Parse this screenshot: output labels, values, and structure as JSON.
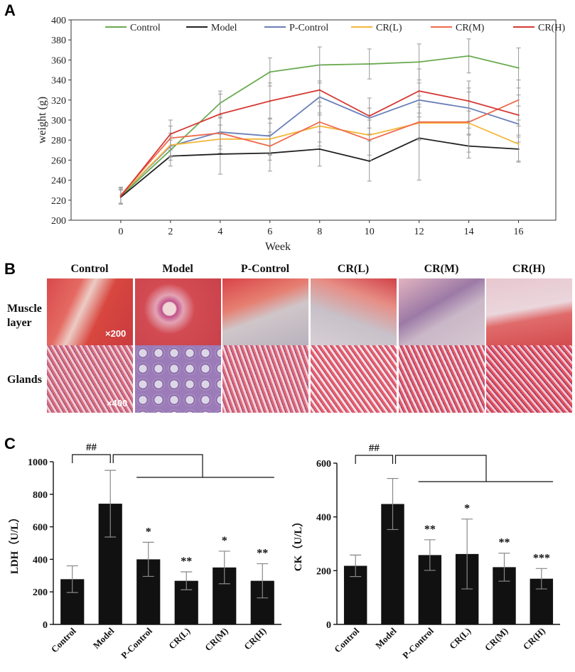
{
  "panels": {
    "a": "A",
    "b": "B",
    "c": "C"
  },
  "chart_data": [
    {
      "type": "line",
      "title": "",
      "xlabel": "Week",
      "ylabel": "weight (g)",
      "x": [
        0,
        2,
        4,
        6,
        8,
        10,
        12,
        14,
        16
      ],
      "xticks": [
        "0",
        "2",
        "4",
        "6",
        "8",
        "10",
        "12",
        "14",
        "16"
      ],
      "yticks": [
        "200",
        "220",
        "240",
        "260",
        "280",
        "300",
        "320",
        "340",
        "360",
        "380",
        "400"
      ],
      "ylim": [
        200,
        400
      ],
      "xlim": [
        -2,
        17.5
      ],
      "legend_position": "top",
      "series": [
        {
          "name": "Control",
          "color": "#6aaa4f",
          "values": [
            224,
            270,
            317,
            348,
            355,
            356,
            358,
            364,
            352
          ],
          "err": [
            8,
            10,
            12,
            14,
            18,
            15,
            18,
            17,
            20
          ]
        },
        {
          "name": "Model",
          "color": "#222222",
          "values": [
            223,
            264,
            266,
            267,
            271,
            259,
            282,
            274,
            271
          ],
          "err": [
            7,
            10,
            20,
            18,
            17,
            20,
            42,
            12,
            12
          ]
        },
        {
          "name": "P-Control",
          "color": "#6a7fb8",
          "values": [
            225,
            274,
            288,
            284,
            323,
            302,
            320,
            312,
            296
          ],
          "err": [
            8,
            10,
            14,
            18,
            16,
            10,
            17,
            20,
            18
          ]
        },
        {
          "name": "CR(L)",
          "color": "#f4b73a",
          "values": [
            225,
            275,
            281,
            281,
            294,
            285,
            297,
            297,
            276
          ],
          "err": [
            8,
            12,
            14,
            16,
            20,
            20,
            16,
            12,
            18
          ]
        },
        {
          "name": "CR(M)",
          "color": "#ef6a4c",
          "values": [
            225,
            282,
            287,
            274,
            298,
            280,
            298,
            298,
            320
          ],
          "err": [
            8,
            12,
            16,
            14,
            20,
            20,
            18,
            30,
            20
          ]
        },
        {
          "name": "CR(H)",
          "color": "#d63a35",
          "values": [
            224,
            286,
            306,
            319,
            330,
            304,
            329,
            319,
            305
          ],
          "err": [
            7,
            14,
            20,
            18,
            25,
            18,
            22,
            20,
            20
          ]
        }
      ]
    },
    {
      "type": "bar",
      "title": "",
      "xlabel": "",
      "ylabel": "LDH（U/L）",
      "categories": [
        "Control",
        "Model",
        "P-Control",
        "CR(L)",
        "CR(M)",
        "CR(H)"
      ],
      "values": [
        278,
        742,
        400,
        268,
        350,
        268
      ],
      "err": [
        82,
        205,
        105,
        55,
        100,
        105
      ],
      "annotations": [
        "",
        "##",
        "*",
        "**",
        "*",
        "**"
      ],
      "ylim": [
        0,
        1000
      ],
      "yticks": [
        "0",
        "200",
        "400",
        "600",
        "800",
        "1000"
      ]
    },
    {
      "type": "bar",
      "title": "",
      "xlabel": "",
      "ylabel": "CK（U/L）",
      "categories": [
        "Control",
        "Model",
        "P-Control",
        "CR(L)",
        "CR(M)",
        "CR(H)"
      ],
      "values": [
        218,
        448,
        258,
        262,
        213,
        170
      ],
      "err": [
        40,
        95,
        57,
        130,
        52,
        38
      ],
      "annotations": [
        "",
        "##",
        "**",
        "*",
        "**",
        "***"
      ],
      "ylim": [
        0,
        600
      ],
      "yticks": [
        "0",
        "200",
        "400",
        "600"
      ]
    }
  ],
  "histology": {
    "columns": [
      "Control",
      "Model",
      "P-Control",
      "CR(L)",
      "CR(M)",
      "CR(H)"
    ],
    "rows": [
      {
        "label": "Muscle\nlayer",
        "magnification": "×200"
      },
      {
        "label": "Glands",
        "magnification": "×400"
      }
    ]
  }
}
